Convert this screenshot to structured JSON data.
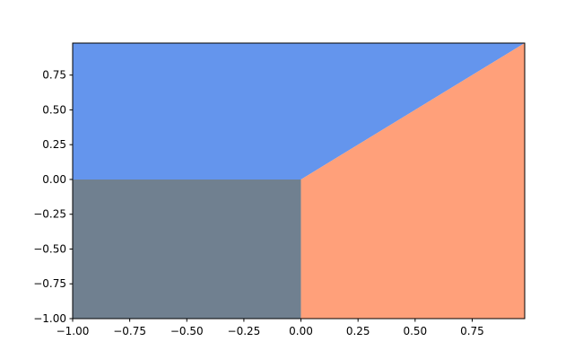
{
  "chart_data": {
    "type": "region",
    "xlim": [
      -1,
      0.98
    ],
    "ylim": [
      -1,
      0.98
    ],
    "xticks": [
      {
        "value": -1,
        "label": "−1.00"
      },
      {
        "value": -0.75,
        "label": "−0.75"
      },
      {
        "value": -0.5,
        "label": "−0.50"
      },
      {
        "value": -0.25,
        "label": "−0.25"
      },
      {
        "value": 0,
        "label": "0.00"
      },
      0.25,
      {
        "value": 0.5,
        "label": "0.50"
      },
      0.75
    ],
    "yticks": [
      {
        "value": -1,
        "label": "−1.00"
      },
      {
        "value": -0.75,
        "label": "−0.75"
      },
      {
        "value": -0.5,
        "label": "−0.50"
      },
      {
        "value": -0.25,
        "label": "−0.25"
      },
      {
        "value": 0,
        "label": "0.00"
      },
      0.25,
      {
        "value": 0.5,
        "label": "0.50"
      },
      0.75
    ],
    "series": [
      {
        "color": "#6495ed",
        "x": [
          -1,
          0,
          0.98,
          -1
        ],
        "y": [
          0,
          0,
          0.98,
          0.98
        ]
      },
      {
        "color": "#708090",
        "x": [
          -1,
          0,
          0,
          -1
        ],
        "y": [
          -1,
          -1,
          0,
          0
        ]
      },
      {
        "color": "#ffa07a",
        "x": [
          0,
          0.98,
          0.98,
          0
        ],
        "y": [
          -1,
          -1,
          0.98,
          0
        ]
      }
    ]
  }
}
